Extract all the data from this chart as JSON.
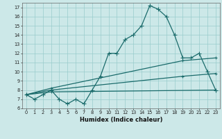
{
  "xlabel": "Humidex (Indice chaleur)",
  "bg_color": "#cce8e8",
  "grid_color": "#99cccc",
  "line_color": "#1a6b6b",
  "x_ticks": [
    0,
    1,
    2,
    3,
    4,
    5,
    6,
    7,
    8,
    9,
    10,
    11,
    12,
    13,
    14,
    15,
    16,
    17,
    18,
    19,
    20,
    21,
    22,
    23
  ],
  "y_ticks": [
    6,
    7,
    8,
    9,
    10,
    11,
    12,
    13,
    14,
    15,
    16,
    17
  ],
  "ylim": [
    6.0,
    17.5
  ],
  "xlim": [
    -0.5,
    23.5
  ],
  "line1_x": [
    0,
    1,
    2,
    3,
    4,
    5,
    6,
    7,
    8,
    9,
    10,
    11,
    12,
    13,
    14,
    15,
    16,
    17,
    18,
    19,
    20,
    21,
    22,
    23
  ],
  "line1_y": [
    7.5,
    7.0,
    7.5,
    8.0,
    7.0,
    6.5,
    7.0,
    6.5,
    8.0,
    9.5,
    12.0,
    12.0,
    13.5,
    14.0,
    15.0,
    17.2,
    16.8,
    16.0,
    14.0,
    11.5,
    11.5,
    12.0,
    10.0,
    8.0
  ],
  "line2_x": [
    0,
    3,
    19,
    23
  ],
  "line2_y": [
    7.5,
    8.2,
    11.2,
    11.5
  ],
  "line3_x": [
    0,
    3,
    19,
    23
  ],
  "line3_y": [
    7.5,
    8.0,
    9.5,
    9.8
  ],
  "line4_x": [
    0,
    3,
    23
  ],
  "line4_y": [
    7.5,
    7.8,
    8.0
  ]
}
